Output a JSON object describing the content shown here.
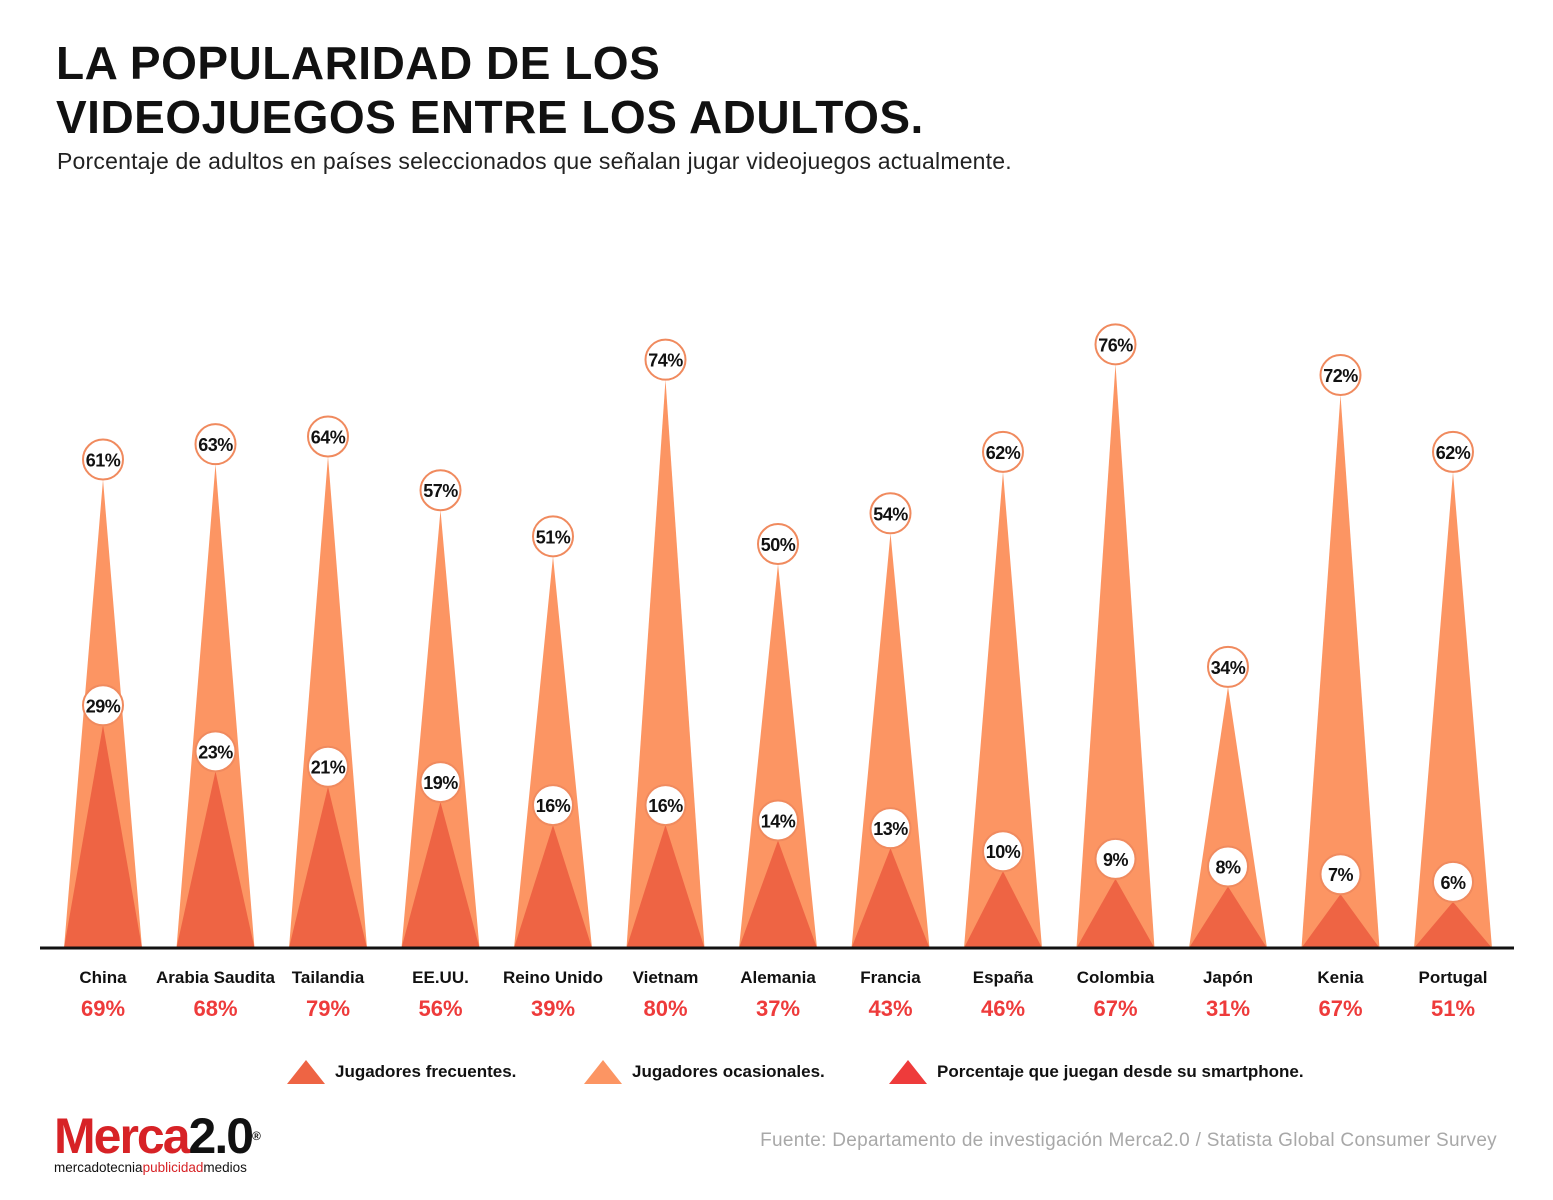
{
  "title_lines": [
    "LA POPULARIDAD DE LOS",
    "VIDEOJUEGOS ENTRE LOS ADULTOS."
  ],
  "subtitle": "Porcentaje de adultos en países seleccionados que señalan jugar videojuegos actualmente.",
  "source": "Fuente: Departamento de investigación Merca2.0 / Statista Global Consumer Survey",
  "logo": {
    "brand": "Merca",
    "brand_num": "2.0",
    "reg": "®",
    "tag_a": "mercadotecnia",
    "tag_b": "publicidad",
    "tag_c": "medios"
  },
  "legend": [
    {
      "label": "Jugadores frecuentes.",
      "color": "#ee6444"
    },
    {
      "label": "Jugadores ocasionales.",
      "color": "#fc9563"
    },
    {
      "label": "Porcentaje que juegan desde su smartphone.",
      "color": "#ee3b3b"
    }
  ],
  "colors": {
    "frequent": "#ee6444",
    "occasional": "#fc9563",
    "smartphone": "#ee3b3b",
    "label_ring": "#f08a5e",
    "axis": "#111111"
  },
  "chart_data": {
    "type": "bar",
    "mark_shape": "triangle",
    "categories": [
      "China",
      "Arabia Saudita",
      "Tailandia",
      "EE.UU.",
      "Reino Unido",
      "Vietnam",
      "Alemania",
      "Francia",
      "España",
      "Colombia",
      "Japón",
      "Kenia",
      "Portugal"
    ],
    "series": [
      {
        "name": "Jugadores ocasionales.",
        "values": [
          61,
          63,
          64,
          57,
          51,
          74,
          50,
          54,
          62,
          76,
          34,
          72,
          62
        ],
        "labels": [
          "61%",
          "63%",
          "64%",
          "57%",
          "51%",
          "74%",
          "50%",
          "54%",
          "62%",
          "76%",
          "34%",
          "72%",
          "62%"
        ]
      },
      {
        "name": "Jugadores frecuentes.",
        "values": [
          29,
          23,
          21,
          19,
          16,
          16,
          14,
          13,
          10,
          9,
          8,
          7,
          6
        ],
        "labels": [
          "29%",
          "23%",
          "21%",
          "19%",
          "16%",
          "16%",
          "14%",
          "13%",
          "10%",
          "9%",
          "8%",
          "7%",
          "6%"
        ]
      },
      {
        "name": "Porcentaje que juegan desde su smartphone.",
        "values": [
          69,
          68,
          79,
          56,
          39,
          80,
          37,
          43,
          46,
          67,
          31,
          67,
          51
        ],
        "labels": [
          "69%",
          "68%",
          "79%",
          "56%",
          "39%",
          "80%",
          "37%",
          "43%",
          "46%",
          "67%",
          "31%",
          "67%",
          "51%"
        ]
      }
    ],
    "ylim": [
      0,
      100
    ]
  }
}
